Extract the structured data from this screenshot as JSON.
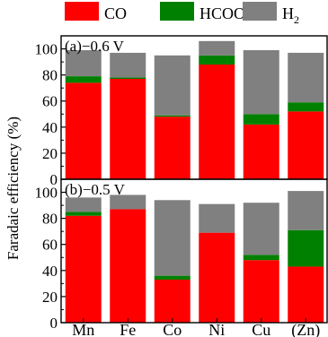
{
  "chart_data": {
    "type": "bar",
    "stacked": true,
    "ylabel": "Faradaic efficiency (%)",
    "categories": [
      "Mn",
      "Fe",
      "Co",
      "Ni",
      "Cu",
      "(Zn)"
    ],
    "legend": {
      "placement": "top",
      "entries": [
        {
          "name": "CO",
          "color": "#ff0000"
        },
        {
          "name": "HCOO",
          "sup": "−",
          "color": "#008000"
        },
        {
          "name": "H",
          "sub": "2",
          "color": "#808080"
        }
      ]
    },
    "panels": [
      {
        "label": "(a)",
        "potential": "−0.6 V",
        "ylim": [
          0,
          110
        ],
        "yticks": [
          "0",
          "20",
          "40",
          "60",
          "80",
          "100"
        ],
        "series": [
          {
            "name": "CO",
            "values": [
              74,
              77,
              48,
              88,
              42,
              52
            ]
          },
          {
            "name": "HCOO−",
            "values": [
              5,
              1,
              1,
              7,
              8,
              7
            ]
          },
          {
            "name": "H2",
            "values": [
              20,
              19,
              46,
              11,
              49,
              38
            ]
          }
        ]
      },
      {
        "label": "(b)",
        "potential": "−0.5 V",
        "ylim": [
          0,
          110
        ],
        "yticks": [
          "0",
          "20",
          "40",
          "60",
          "80",
          "100"
        ],
        "series": [
          {
            "name": "CO",
            "values": [
              82,
              87,
              33,
              69,
              48,
              43
            ]
          },
          {
            "name": "HCOO−",
            "values": [
              3,
              0,
              3,
              0,
              4,
              28
            ]
          },
          {
            "name": "H2",
            "values": [
              11,
              11,
              58,
              22,
              40,
              30
            ]
          }
        ]
      }
    ]
  }
}
